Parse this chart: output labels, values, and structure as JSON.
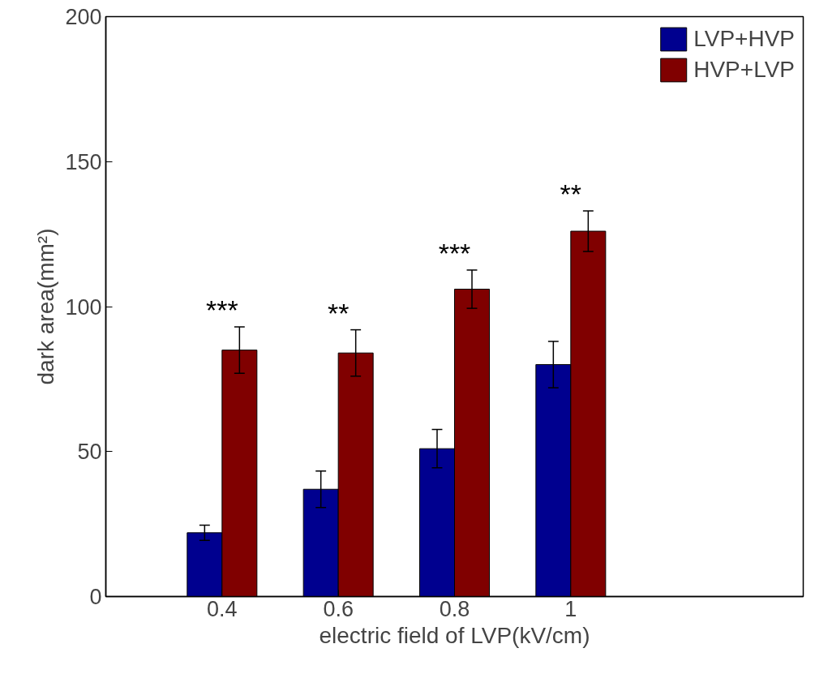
{
  "chart_data": {
    "type": "bar",
    "xlabel": "electric field of LVP(kV/cm)",
    "ylabel": "dark area(mm²)",
    "x": [
      0.4,
      0.6,
      0.8,
      1
    ],
    "xlim": [
      0.2,
      1.4
    ],
    "xticks": [
      0.4,
      0.6,
      0.8,
      1
    ],
    "ylim": [
      0,
      200
    ],
    "yticks": [
      0,
      50,
      100,
      150,
      200
    ],
    "series": [
      {
        "name": "LVP+HVP",
        "color": "#00008f",
        "values": [
          22,
          37,
          51,
          80
        ],
        "errors": [
          2.6,
          6.3,
          6.6,
          8
        ]
      },
      {
        "name": "HVP+LVP",
        "color": "#800000",
        "values": [
          85,
          84,
          106,
          126
        ],
        "errors": [
          8,
          8,
          6.6,
          7
        ]
      }
    ],
    "annotations": [
      "***",
      "**",
      "***",
      "**"
    ],
    "legend": "top right",
    "grid": false
  }
}
